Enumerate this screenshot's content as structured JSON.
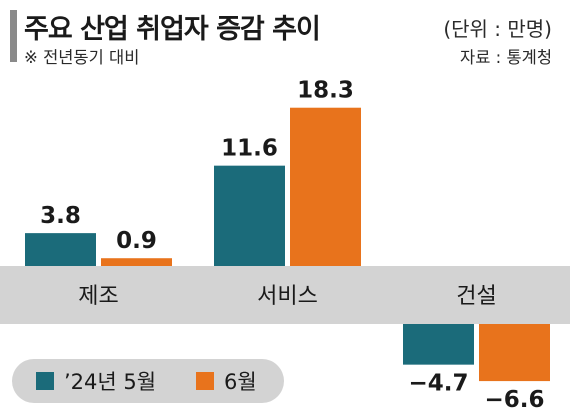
{
  "header": {
    "title": "주요 산업 취업자 증감 추이",
    "unit": "(단위 : 만명)",
    "note": "※ 전년동기 대비",
    "source": "자료 : 통계청"
  },
  "colors": {
    "series_may": "#1b6b7a",
    "series_june": "#e8731c",
    "band": "#d3d3d3",
    "accent": "#8a8a8a"
  },
  "chart_data": {
    "type": "bar",
    "categories": [
      "제조",
      "서비스",
      "건설"
    ],
    "series": [
      {
        "name": "’24년 5월",
        "values": [
          3.8,
          11.6,
          -4.7
        ],
        "value_labels": [
          "3.8",
          "11.6",
          "−4.7"
        ]
      },
      {
        "name": "6월",
        "values": [
          0.9,
          18.3,
          -6.6
        ],
        "value_labels": [
          "0.9",
          "18.3",
          "−6.6"
        ]
      }
    ],
    "title": "주요 산업 취업자 증감 추이",
    "xlabel": "",
    "ylabel": "",
    "unit": "만명",
    "legend_position": "bottom-left",
    "grid": false
  }
}
